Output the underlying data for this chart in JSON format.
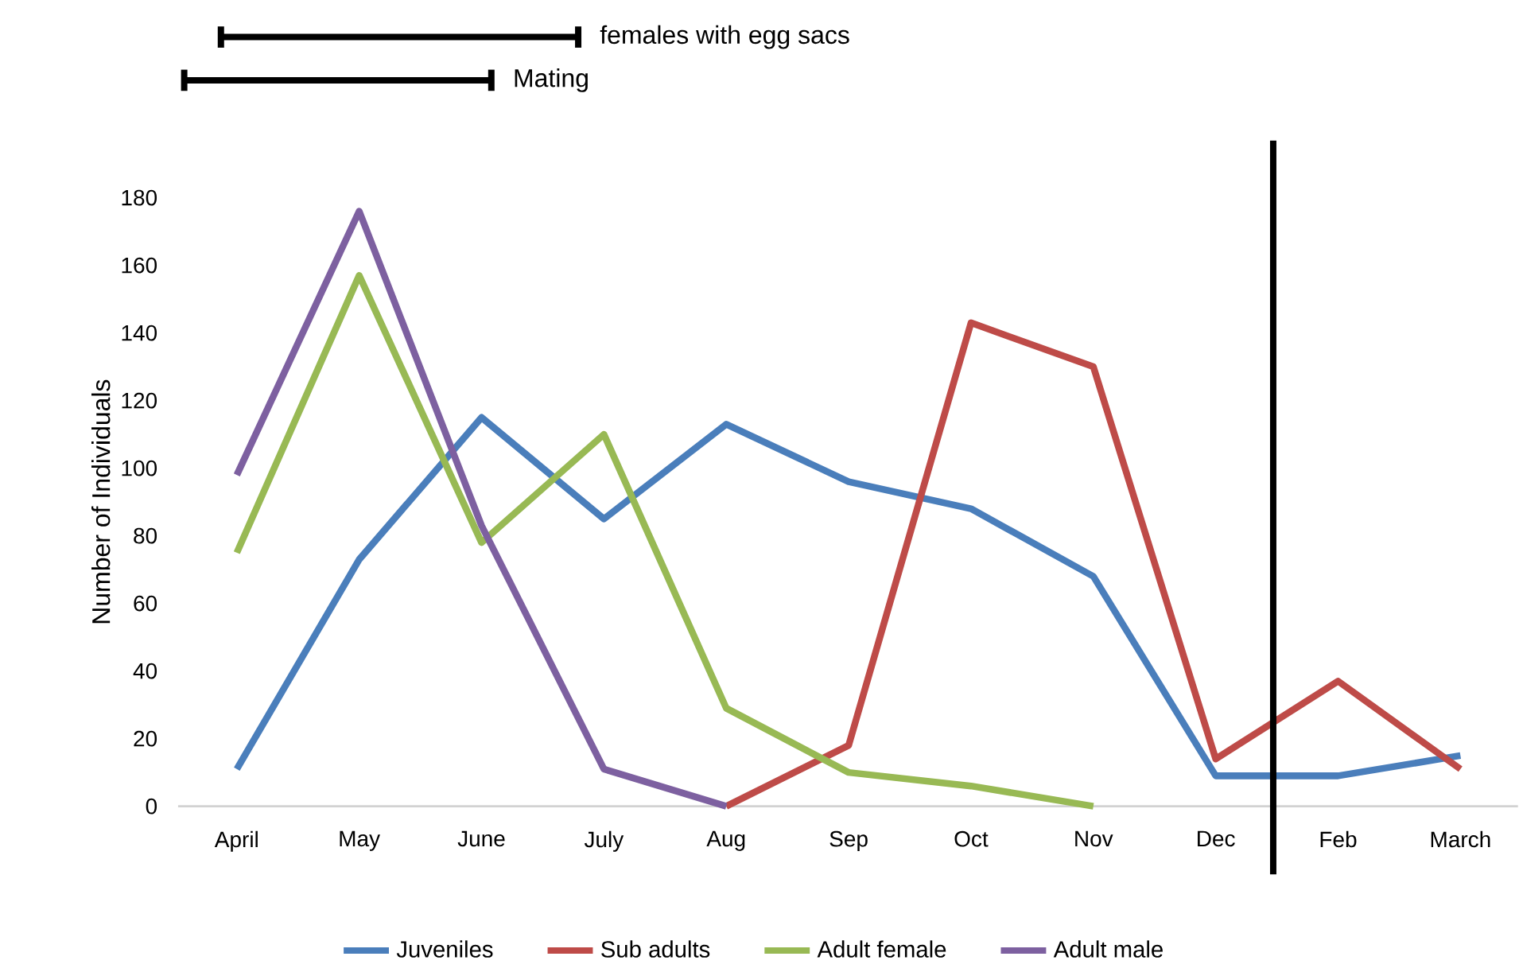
{
  "chart_data": {
    "type": "line",
    "ylabel": "Number of Individuals",
    "categories": [
      "April",
      "May",
      "June",
      "July",
      "Aug",
      "Sep",
      "Oct",
      "Nov",
      "Dec",
      "Feb",
      "March"
    ],
    "series": [
      {
        "name": "Juveniles",
        "color": "#4a7ebb",
        "values": [
          11,
          73,
          115,
          85,
          113,
          96,
          88,
          68,
          9,
          9,
          15
        ]
      },
      {
        "name": "Sub adults",
        "color": "#be4b48",
        "values": [
          null,
          null,
          null,
          null,
          0,
          18,
          143,
          130,
          14,
          37,
          11
        ]
      },
      {
        "name": "Adult female",
        "color": "#98b954",
        "values": [
          75,
          157,
          78,
          110,
          29,
          10,
          6,
          0,
          null,
          null,
          null
        ]
      },
      {
        "name": "Adult male",
        "color": "#7d60a0",
        "values": [
          98,
          176,
          83,
          11,
          0,
          null,
          null,
          null,
          null,
          null,
          null
        ]
      }
    ],
    "ylim": [
      0,
      180
    ],
    "yticks": [
      0,
      20,
      40,
      60,
      80,
      100,
      120,
      140,
      160,
      180
    ],
    "annotations": [
      "females with egg sacs",
      "Mating"
    ],
    "legend": "bottom",
    "grid": false,
    "marker": "none",
    "line_style": "solid"
  }
}
